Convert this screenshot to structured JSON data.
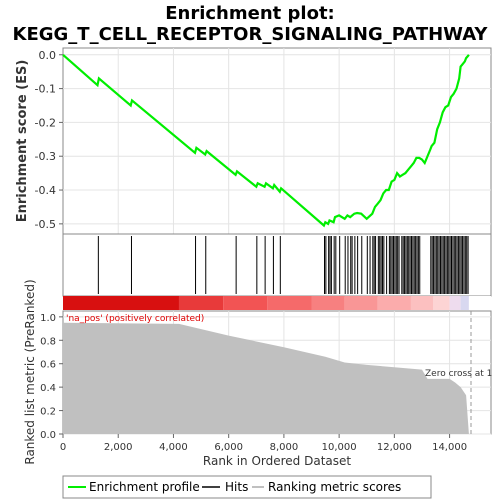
{
  "chart_data": {
    "type": "line",
    "title_line1": "Enrichment plot:",
    "title_line2": "KEGG_T_CELL_RECEPTOR_SIGNALING_PATHWAY",
    "es_ylabel": "Enrichment score (ES)",
    "es_ylim": [
      -0.53,
      0.02
    ],
    "es_yticks": [
      0.0,
      -0.1,
      -0.2,
      -0.3,
      -0.4,
      -0.5
    ],
    "es_ytick_labels": [
      "0.0",
      "-0.1",
      "-0.2",
      "-0.3",
      "-0.4",
      "-0.5"
    ],
    "xlim": [
      0,
      15500
    ],
    "xlabel": "Rank in Ordered Dataset",
    "xticks": [
      0,
      2000,
      4000,
      6000,
      8000,
      10000,
      12000,
      14000
    ],
    "xtick_labels": [
      "0",
      "2,000",
      "4,000",
      "6,000",
      "8,000",
      "10,000",
      "12,000",
      "14,000"
    ],
    "es_profile": {
      "name": "Enrichment profile",
      "color": "#00ee00",
      "x": [
        0,
        1250,
        1300,
        2450,
        2500,
        4780,
        4830,
        5150,
        5200,
        6250,
        6300,
        7000,
        7050,
        7300,
        7350,
        7600,
        7650,
        7850,
        7900,
        9450,
        9500,
        9600,
        9650,
        9800,
        9850,
        10000,
        10200,
        10300,
        10400,
        10550,
        10650,
        10800,
        11000,
        11200,
        11300,
        11400,
        11500,
        11600,
        11700,
        11800,
        11900,
        12000,
        12100,
        12200,
        12300,
        12400,
        12500,
        12600,
        12700,
        12800,
        12900,
        13000,
        13100,
        13300,
        13350,
        13450,
        13550,
        13650,
        13750,
        13850,
        13950,
        14050,
        14150,
        14250,
        14350,
        14400,
        14450,
        14500,
        14550,
        14600,
        14650,
        14700
      ],
      "y": [
        0.0,
        -0.09,
        -0.07,
        -0.15,
        -0.135,
        -0.29,
        -0.275,
        -0.295,
        -0.285,
        -0.355,
        -0.345,
        -0.39,
        -0.38,
        -0.39,
        -0.38,
        -0.395,
        -0.385,
        -0.405,
        -0.395,
        -0.505,
        -0.495,
        -0.5,
        -0.49,
        -0.495,
        -0.48,
        -0.475,
        -0.485,
        -0.475,
        -0.48,
        -0.47,
        -0.468,
        -0.47,
        -0.485,
        -0.47,
        -0.45,
        -0.44,
        -0.43,
        -0.41,
        -0.4,
        -0.4,
        -0.375,
        -0.37,
        -0.35,
        -0.36,
        -0.355,
        -0.35,
        -0.34,
        -0.33,
        -0.32,
        -0.305,
        -0.305,
        -0.31,
        -0.32,
        -0.28,
        -0.27,
        -0.26,
        -0.22,
        -0.2,
        -0.17,
        -0.155,
        -0.15,
        -0.125,
        -0.115,
        -0.1,
        -0.07,
        -0.035,
        -0.03,
        -0.025,
        -0.02,
        -0.01,
        -0.005,
        0.0
      ]
    },
    "hits": {
      "name": "Hits",
      "x": [
        1280,
        2480,
        4800,
        5170,
        6270,
        7020,
        7320,
        7620,
        7870,
        9470,
        9520,
        9620,
        9670,
        9720,
        9820,
        9880,
        10020,
        10220,
        10320,
        10420,
        10470,
        10570,
        10670,
        10820,
        11020,
        11120,
        11220,
        11270,
        11320,
        11420,
        11470,
        11520,
        11570,
        11620,
        11720,
        11820,
        11870,
        11920,
        11970,
        12020,
        12070,
        12120,
        12170,
        12270,
        12320,
        12370,
        12420,
        12470,
        12520,
        12570,
        12620,
        12670,
        12720,
        12770,
        12820,
        12870,
        12920,
        13320,
        13370,
        13420,
        13470,
        13520,
        13570,
        13620,
        13670,
        13720,
        13770,
        13820,
        13870,
        13920,
        13970,
        14020,
        14070,
        14120,
        14170,
        14220,
        14270,
        14320,
        14370,
        14420,
        14470,
        14520,
        14570,
        14620,
        14670
      ]
    },
    "ranked_metric": {
      "name": "Ranking metric scores",
      "ylabel": "Ranked list metric (PreRanked)",
      "ylim": [
        0.0,
        1.05
      ],
      "yticks": [
        0.0,
        0.2,
        0.4,
        0.6,
        0.8,
        1.0
      ],
      "ytick_labels": [
        "0.0",
        "0.2",
        "0.4",
        "0.6",
        "0.8",
        "1.0"
      ],
      "x": [
        0,
        4200,
        6000,
        8000,
        9500,
        10200,
        11000,
        12000,
        13000,
        13200,
        14000,
        14200,
        14400,
        14600,
        14700
      ],
      "y": [
        0.95,
        0.94,
        0.84,
        0.74,
        0.66,
        0.61,
        0.59,
        0.57,
        0.55,
        0.47,
        0.47,
        0.44,
        0.4,
        0.33,
        0.0
      ]
    },
    "positive_label": "'na_pos' (positively correlated)",
    "zero_cross_label": "Zero cross at 1",
    "legend": [
      {
        "label": "Enrichment profile",
        "color": "#00ee00"
      },
      {
        "label": "Hits",
        "color": "#000000"
      },
      {
        "label": "Ranking metric scores",
        "color": "#c0c0c0"
      }
    ]
  }
}
